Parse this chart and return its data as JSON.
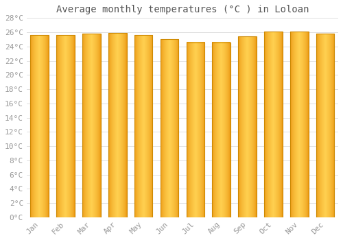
{
  "title": "Average monthly temperatures (°C ) in Loloan",
  "months": [
    "Jan",
    "Feb",
    "Mar",
    "Apr",
    "May",
    "Jun",
    "Jul",
    "Aug",
    "Sep",
    "Oct",
    "Nov",
    "Dec"
  ],
  "values": [
    25.6,
    25.6,
    25.8,
    25.9,
    25.6,
    25.0,
    24.6,
    24.6,
    25.4,
    26.1,
    26.1,
    25.8
  ],
  "ylim": [
    0,
    28
  ],
  "yticks": [
    0,
    2,
    4,
    6,
    8,
    10,
    12,
    14,
    16,
    18,
    20,
    22,
    24,
    26,
    28
  ],
  "bar_color_dark": "#E8900A",
  "bar_color_light": "#FFD050",
  "bar_edge_color": "#CC8800",
  "background_color": "#FFFFFF",
  "grid_color": "#E0E0E0",
  "title_fontsize": 10,
  "tick_fontsize": 8,
  "font_family": "monospace"
}
